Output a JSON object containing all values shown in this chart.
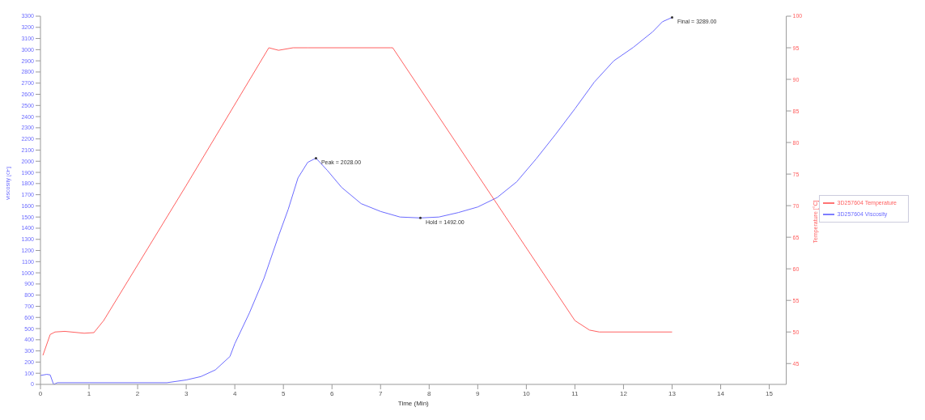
{
  "chart_data": {
    "type": "line",
    "xlabel": "Time (Min)",
    "ylabel": "Viscosity [cP]",
    "y2label": "Temperature [°C]",
    "xlim": [
      0,
      15.35
    ],
    "xticks": [
      0,
      1,
      2,
      3,
      4,
      5,
      6,
      7,
      8,
      9,
      10,
      11,
      12,
      13,
      14,
      15
    ],
    "ylim": [
      0,
      3300
    ],
    "yticks": [
      0,
      100,
      200,
      300,
      400,
      500,
      600,
      700,
      800,
      900,
      1000,
      1100,
      1200,
      1300,
      1400,
      1500,
      1600,
      1700,
      1800,
      1900,
      2000,
      2100,
      2200,
      2300,
      2400,
      2500,
      2600,
      2700,
      2800,
      2900,
      3000,
      3100,
      3200,
      3300
    ],
    "y2lim": [
      41.7,
      100
    ],
    "y2ticks": [
      45,
      50,
      55,
      60,
      65,
      70,
      75,
      80,
      85,
      90,
      95,
      100
    ],
    "grid": false,
    "legend": "right",
    "marker": "none",
    "line_style": "solid",
    "series": [
      {
        "name": "3D257604 Viscosity",
        "color": "#6b6bff",
        "axis": "y",
        "x": [
          0,
          0.13,
          0.2,
          0.27,
          0.35,
          1,
          2,
          2.6,
          3,
          3.3,
          3.6,
          3.9,
          4,
          4.3,
          4.6,
          4.9,
          5.1,
          5.3,
          5.5,
          5.67,
          5.9,
          6.2,
          6.6,
          7,
          7.4,
          7.82,
          8.2,
          8.6,
          9,
          9.4,
          9.8,
          10.2,
          10.6,
          11,
          11.4,
          11.8,
          12.2,
          12.6,
          12.8,
          13
        ],
        "values": [
          80,
          90,
          85,
          0,
          15,
          15,
          15,
          15,
          40,
          70,
          130,
          250,
          365,
          640,
          950,
          1330,
          1570,
          1850,
          1990,
          2028,
          1920,
          1765,
          1620,
          1550,
          1500,
          1492,
          1500,
          1540,
          1590,
          1675,
          1815,
          2020,
          2240,
          2470,
          2710,
          2900,
          3020,
          3160,
          3250,
          3289
        ]
      },
      {
        "name": "3D257604 Temperature",
        "color": "#ff6060",
        "axis": "y2",
        "x": [
          0.05,
          0.2,
          0.3,
          0.5,
          0.9,
          1.1,
          1.3,
          3,
          4.7,
          4.9,
          5.2,
          5.5,
          7.2,
          7.25,
          11,
          11.3,
          11.5,
          13
        ],
        "values": [
          46.3,
          49.6,
          50,
          50.1,
          49.8,
          49.9,
          51.8,
          73.2,
          95,
          94.6,
          95,
          95,
          95,
          95,
          51.8,
          50.3,
          50,
          50
        ]
      }
    ],
    "annotations": [
      {
        "text": "Peak = 2028.00",
        "x": 5.67,
        "y": 2028
      },
      {
        "text": "Hold = 1492.00",
        "x": 7.82,
        "y": 1492
      },
      {
        "text": "Final = 3289.00",
        "x": 13,
        "y": 3289
      }
    ]
  }
}
